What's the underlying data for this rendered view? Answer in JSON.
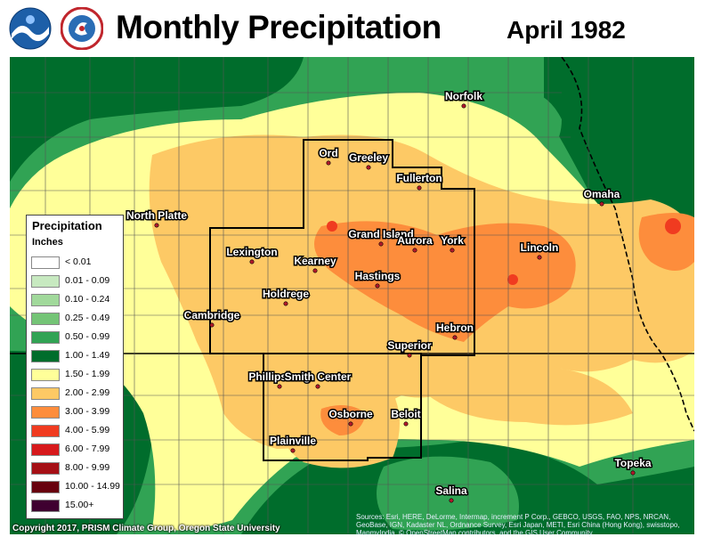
{
  "header": {
    "title": "Monthly Precipitation",
    "subtitle": "April 1982",
    "logos": [
      "noaa-logo",
      "national-weather-service-logo"
    ]
  },
  "legend": {
    "title": "Precipitation",
    "units": "Inches",
    "items": [
      {
        "label": "< 0.01",
        "color": "#ffffff"
      },
      {
        "label": "0.01 - 0.09",
        "color": "#c7e9c0"
      },
      {
        "label": "0.10 - 0.24",
        "color": "#a1d99b"
      },
      {
        "label": "0.25 - 0.49",
        "color": "#74c476"
      },
      {
        "label": "0.50 - 0.99",
        "color": "#31a354"
      },
      {
        "label": "1.00 - 1.49",
        "color": "#006d2c"
      },
      {
        "label": "1.50 - 1.99",
        "color": "#ffff99"
      },
      {
        "label": "2.00 - 2.99",
        "color": "#fdc965"
      },
      {
        "label": "3.00 - 3.99",
        "color": "#fd8d3c"
      },
      {
        "label": "4.00 - 5.99",
        "color": "#f03b20"
      },
      {
        "label": "6.00 - 7.99",
        "color": "#d7191c"
      },
      {
        "label": "8.00 - 9.99",
        "color": "#a50f15"
      },
      {
        "label": "10.00 - 14.99",
        "color": "#67000d"
      },
      {
        "label": "15.00+",
        "color": "#3f0030"
      }
    ]
  },
  "cities": [
    {
      "name": "Norfolk"
    },
    {
      "name": "Ord"
    },
    {
      "name": "Greeley"
    },
    {
      "name": "Fullerton"
    },
    {
      "name": "Omaha"
    },
    {
      "name": "North Platte"
    },
    {
      "name": "Grand Island"
    },
    {
      "name": "Aurora"
    },
    {
      "name": "York"
    },
    {
      "name": "Lincoln"
    },
    {
      "name": "Lexington"
    },
    {
      "name": "Kearney"
    },
    {
      "name": "Hastings"
    },
    {
      "name": "Holdrege"
    },
    {
      "name": "Cambridge"
    },
    {
      "name": "Hebron"
    },
    {
      "name": "Superior"
    },
    {
      "name": "Phillipsburg"
    },
    {
      "name": "Smith Center"
    },
    {
      "name": "Osborne"
    },
    {
      "name": "Beloit"
    },
    {
      "name": "Plainville"
    },
    {
      "name": "Topeka"
    },
    {
      "name": "Salina"
    }
  ],
  "footer": {
    "copyright": "Copyright 2017, PRISM Climate Group, Oregon State University",
    "credits": "Sources: Esri, HERE, DeLorme, Intermap, increment P Corp., GEBCO, USGS, FAO, NPS, NRCAN, GeoBase, IGN, Kadaster NL, Ordnance Survey, Esri Japan, METI, Esri China (Hong Kong), swisstopo, MapmyIndia, © OpenStreetMap contributors, and the GIS User Community"
  }
}
